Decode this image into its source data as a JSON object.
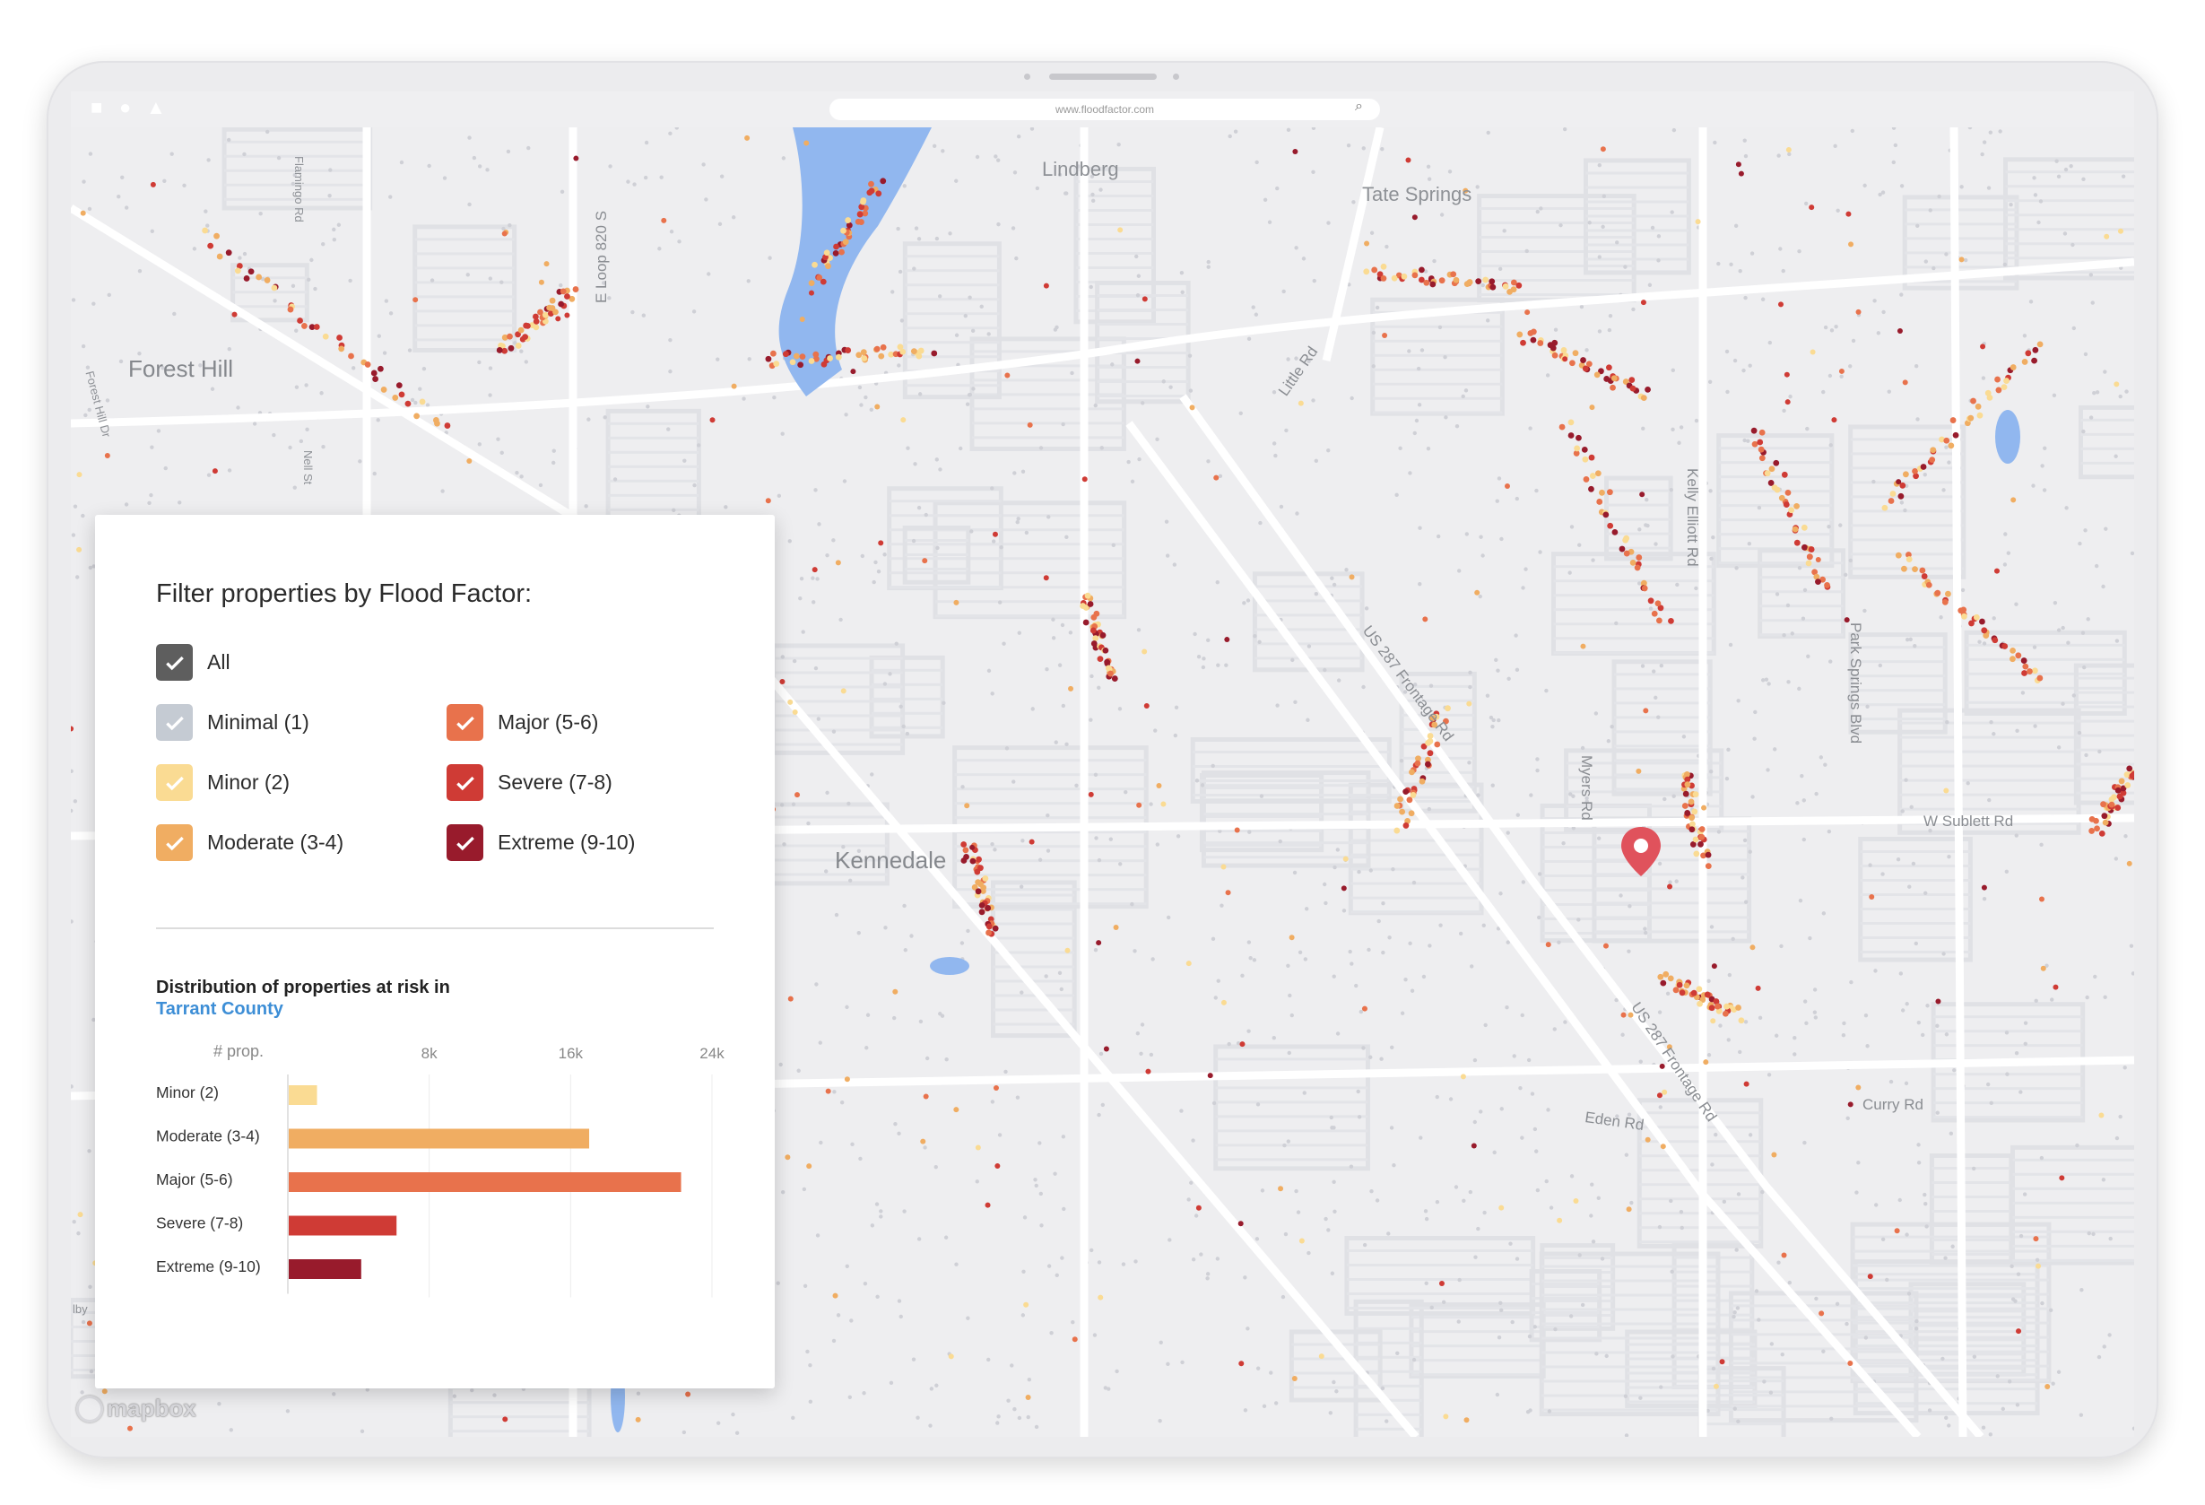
{
  "browser": {
    "url": "www.floodfactor.com"
  },
  "map": {
    "labels": {
      "lindberg": "Lindberg",
      "tate_springs": "Tate Springs",
      "forest_hill": "Forest Hill",
      "kennedale": "Kennedale",
      "e_loop": "E Loop 820 S",
      "little_rd": "Little Rd",
      "us287_a": "US 287 Frontage Rd",
      "us287_b": "US 287 Frontage Rd",
      "kelly_elliott": "Kelly Elliott Rd",
      "park_springs": "Park Springs Blvd",
      "w_sublett": "W Sublett Rd",
      "myers_rd": "Myers Rd",
      "eden_rd": "Eden Rd",
      "curry_rd": "Curry Rd",
      "flamingo_rd": "Flamingo Rd",
      "forest_hill_dr": "Forest Hill Dr",
      "nell_st": "Nell St",
      "edge_lby": "lby"
    },
    "attribution": "mapbox"
  },
  "filter": {
    "title": "Filter properties by Flood Factor:",
    "options": [
      {
        "label": "All",
        "color": "#5e5e5e",
        "checked": true
      },
      {
        "label": "Minimal (1)",
        "color": "#c5cbd3",
        "checked": true
      },
      {
        "label": "Minor (2)",
        "color": "#fadb93",
        "checked": true
      },
      {
        "label": "Moderate (3-4)",
        "color": "#f0ad62",
        "checked": true
      },
      {
        "label": "Major (5-6)",
        "color": "#e8724c",
        "checked": true
      },
      {
        "label": "Severe (7-8)",
        "color": "#cf3b35",
        "checked": true
      },
      {
        "label": "Extreme (9-10)",
        "color": "#981b2c",
        "checked": true
      }
    ]
  },
  "distribution": {
    "title": "Distribution of properties at risk in",
    "county": "Tarrant County"
  },
  "chart_data": {
    "type": "bar",
    "orientation": "horizontal",
    "xlabel": "# prop.",
    "x_ticks": [
      "8k",
      "16k",
      "24k"
    ],
    "xlim": [
      0,
      24000
    ],
    "categories": [
      "Minor (2)",
      "Moderate (3-4)",
      "Major (5-6)",
      "Severe (7-8)",
      "Extreme (9-10)"
    ],
    "values": [
      1600,
      17000,
      22200,
      6100,
      4100
    ],
    "colors": [
      "#fadb93",
      "#f0ad62",
      "#e8724c",
      "#cf3b35",
      "#981b2c"
    ],
    "grid": true
  }
}
